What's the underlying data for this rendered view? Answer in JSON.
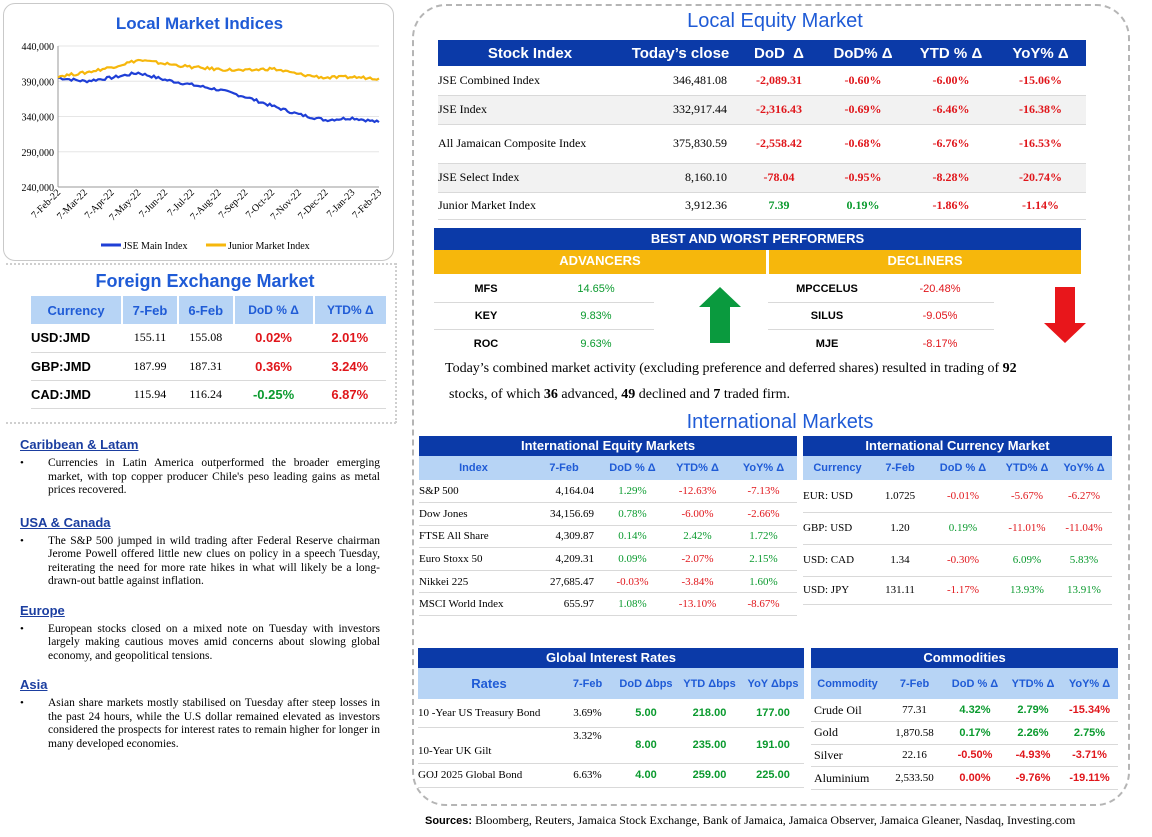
{
  "chart": {
    "title": "Local Market Indices",
    "chart_data": {
      "type": "line",
      "title": "Local Market Indices",
      "x": [
        "7-Feb-22",
        "7-Mar-22",
        "7-Apr-22",
        "7-May-22",
        "7-Jun-22",
        "7-Jul-22",
        "7-Aug-22",
        "7-Sep-22",
        "7-Oct-22",
        "7-Nov-22",
        "7-Dec-22",
        "7-Jan-23",
        "7-Feb-23"
      ],
      "ylim": [
        240000,
        440000
      ],
      "yticks": [
        "440,000",
        "390,000",
        "340,000",
        "290,000",
        "240,000"
      ],
      "series": [
        {
          "name": "JSE Main Index",
          "color": "#1f3fd6",
          "values": [
            395000,
            390000,
            395000,
            402000,
            392000,
            385000,
            378000,
            368000,
            355000,
            343000,
            335000,
            338000,
            332000
          ]
        },
        {
          "name": "Junior Market Index",
          "color": "#f6b70c",
          "values": [
            397000,
            402000,
            410000,
            420000,
            415000,
            410000,
            407000,
            405000,
            408000,
            400000,
            395000,
            396000,
            394000
          ]
        }
      ]
    }
  },
  "fx": {
    "title": "Foreign Exchange Market",
    "headers": [
      "Currency",
      "7-Feb",
      "6-Feb",
      "DoD % Δ",
      "YTD% Δ"
    ],
    "rows": [
      {
        "c": "USD:JMD",
        "a": "155.11",
        "b": "155.08",
        "d": "0.02%",
        "y": "2.01%"
      },
      {
        "c": "GBP:JMD",
        "a": "187.99",
        "b": "187.31",
        "d": "0.36%",
        "y": "3.24%"
      },
      {
        "c": "CAD:JMD",
        "a": "115.94",
        "b": "116.24",
        "d": "-0.25%",
        "y": "6.87%"
      }
    ]
  },
  "news": [
    {
      "h": "Caribbean & Latam",
      "t": "Currencies in Latin America outperformed the broader emerging market, with top copper producer Chile's peso leading gains as metal prices recovered."
    },
    {
      "h": "USA & Canada",
      "t": "The S&P 500 jumped in wild trading after Federal Reserve chairman Jerome Powell offered little new clues on policy in a speech Tuesday, reiterating the need for more rate hikes in what will likely be a long-drawn-out battle against inflation."
    },
    {
      "h": "Europe",
      "t": "European stocks closed on a mixed note on Tuesday with investors largely making cautious moves amid concerns about slowing global economy, and geopolitical tensions."
    },
    {
      "h": "Asia",
      "t": "Asian share markets mostly stabilised on Tuesday after steep losses in the past 24 hours, while the U.S dollar remained elevated as investors considered the prospects for interest rates to remain higher for longer in many developed economies."
    }
  ],
  "local_equity": {
    "title": "Local Equity Market",
    "headers": [
      "Stock Index",
      "Today’s close",
      "DoD  Δ",
      "DoD% Δ",
      "YTD % Δ",
      "YoY% Δ"
    ],
    "rows": [
      {
        "n": "JSE Combined Index",
        "c": "346,481.08",
        "d": "-2,089.31",
        "p": "-0.60%",
        "y": "-6.00%",
        "o": "-15.06%"
      },
      {
        "n": "JSE Index",
        "c": "332,917.44",
        "d": "-2,316.43",
        "p": "-0.69%",
        "y": "-6.46%",
        "o": "-16.38%"
      },
      {
        "n": "All Jamaican Composite Index",
        "c": "375,830.59",
        "d": "-2,558.42",
        "p": "-0.68%",
        "y": "-6.76%",
        "o": "-16.53%"
      },
      {
        "n": "JSE Select Index",
        "c": "8,160.10",
        "d": "-78.04",
        "p": "-0.95%",
        "y": "-8.28%",
        "o": "-20.74%"
      },
      {
        "n": "Junior Market Index",
        "c": "3,912.36",
        "d": "7.39",
        "p": "0.19%",
        "y": "-1.86%",
        "o": "-1.14%"
      }
    ]
  },
  "bwp": {
    "title": "BEST AND WORST PERFORMERS",
    "adv_label": "ADVANCERS",
    "dec_label": "DECLINERS",
    "advancers": [
      {
        "n": "MFS",
        "v": "14.65%"
      },
      {
        "n": "KEY",
        "v": "9.83%"
      },
      {
        "n": "ROC",
        "v": "9.63%"
      }
    ],
    "decliners": [
      {
        "n": "MPCCELUS",
        "v": "-20.48%"
      },
      {
        "n": "SILUS",
        "v": "-9.05%"
      },
      {
        "n": "MJE",
        "v": "-8.17%"
      }
    ]
  },
  "summary": {
    "t1": "Today’s combined market activity (excluding preference and deferred shares) resulted in trading of ",
    "n1": "92",
    "t2": "stocks, of which ",
    "n2": "36",
    "t3": " advanced, ",
    "n3": "49",
    "t4": " declined and ",
    "n4": "7",
    "t5": " traded firm."
  },
  "intl_title": "International Markets",
  "intl_equity": {
    "title": "International Equity Markets",
    "headers": [
      "Index",
      "7-Feb",
      "DoD % Δ",
      "YTD% Δ",
      "YoY% Δ"
    ],
    "rows": [
      {
        "n": "S&P 500",
        "a": "4,164.04",
        "d": "1.29%",
        "y": "-12.63%",
        "o": "-7.13%"
      },
      {
        "n": "Dow Jones",
        "a": "34,156.69",
        "d": "0.78%",
        "y": "-6.00%",
        "o": "-2.66%"
      },
      {
        "n": "FTSE All Share",
        "a": "4,309.87",
        "d": "0.14%",
        "y": "2.42%",
        "o": "1.72%"
      },
      {
        "n": "Euro Stoxx 50",
        "a": "4,209.31",
        "d": "0.09%",
        "y": "-2.07%",
        "o": "2.15%"
      },
      {
        "n": "Nikkei 225",
        "a": "27,685.47",
        "d": "-0.03%",
        "y": "-3.84%",
        "o": "1.60%"
      },
      {
        "n": "MSCI World Index",
        "a": "655.97",
        "d": "1.08%",
        "y": "-13.10%",
        "o": "-8.67%"
      }
    ]
  },
  "intl_fx": {
    "title": "International Currency Market",
    "headers": [
      "Currency",
      "7-Feb",
      "DoD % Δ",
      "YTD% Δ",
      "YoY% Δ"
    ],
    "rows": [
      {
        "n": "EUR: USD",
        "a": "1.0725",
        "d": "-0.01%",
        "y": "-5.67%",
        "o": "-6.27%"
      },
      {
        "n": "GBP: USD",
        "a": "1.20",
        "d": "0.19%",
        "y": "-11.01%",
        "o": "-11.04%"
      },
      {
        "n": "USD: CAD",
        "a": "1.34",
        "d": "-0.30%",
        "y": "6.09%",
        "o": "5.83%"
      },
      {
        "n": "USD: JPY",
        "a": "131.11",
        "d": "-1.17%",
        "y": "13.93%",
        "o": "13.91%"
      }
    ]
  },
  "rates": {
    "title": "Global Interest Rates",
    "headers": [
      "Rates",
      "7-Feb",
      "DoD Δbps",
      "YTD Δbps",
      "YoY Δbps"
    ],
    "rows": [
      {
        "n": "10 -Year US Treasury Bond",
        "a": "3.69%",
        "d": "5.00",
        "y": "218.00",
        "o": "177.00"
      },
      {
        "n": "10-Year UK Gilt",
        "a": "3.32%",
        "d": "8.00",
        "y": "235.00",
        "o": "191.00"
      },
      {
        "n": "GOJ 2025 Global Bond",
        "a": "6.63%",
        "d": "4.00",
        "y": "259.00",
        "o": "225.00"
      }
    ]
  },
  "commodities": {
    "title": "Commodities",
    "headers": [
      "Commodity",
      "7-Feb",
      "DoD % Δ",
      "YTD% Δ",
      "YoY% Δ"
    ],
    "rows": [
      {
        "n": "Crude Oil",
        "a": "77.31",
        "d": "4.32%",
        "y": "2.79%",
        "o": "-15.34%"
      },
      {
        "n": "Gold",
        "a": "1,870.58",
        "d": "0.17%",
        "y": "2.26%",
        "o": "2.75%"
      },
      {
        "n": "Silver",
        "a": "22.16",
        "d": "-0.50%",
        "y": "-4.93%",
        "o": "-3.71%"
      },
      {
        "n": "Aluminium",
        "a": "2,533.50",
        "d": "0.00%",
        "y": "-9.76%",
        "o": "-19.11%"
      }
    ]
  },
  "sources": {
    "label": "Sources:",
    "text": " Bloomberg, Reuters, Jamaica Stock Exchange, Bank of Jamaica, Jamaica Observer, Jamaica Gleaner, Nasdaq, Investing.com"
  }
}
